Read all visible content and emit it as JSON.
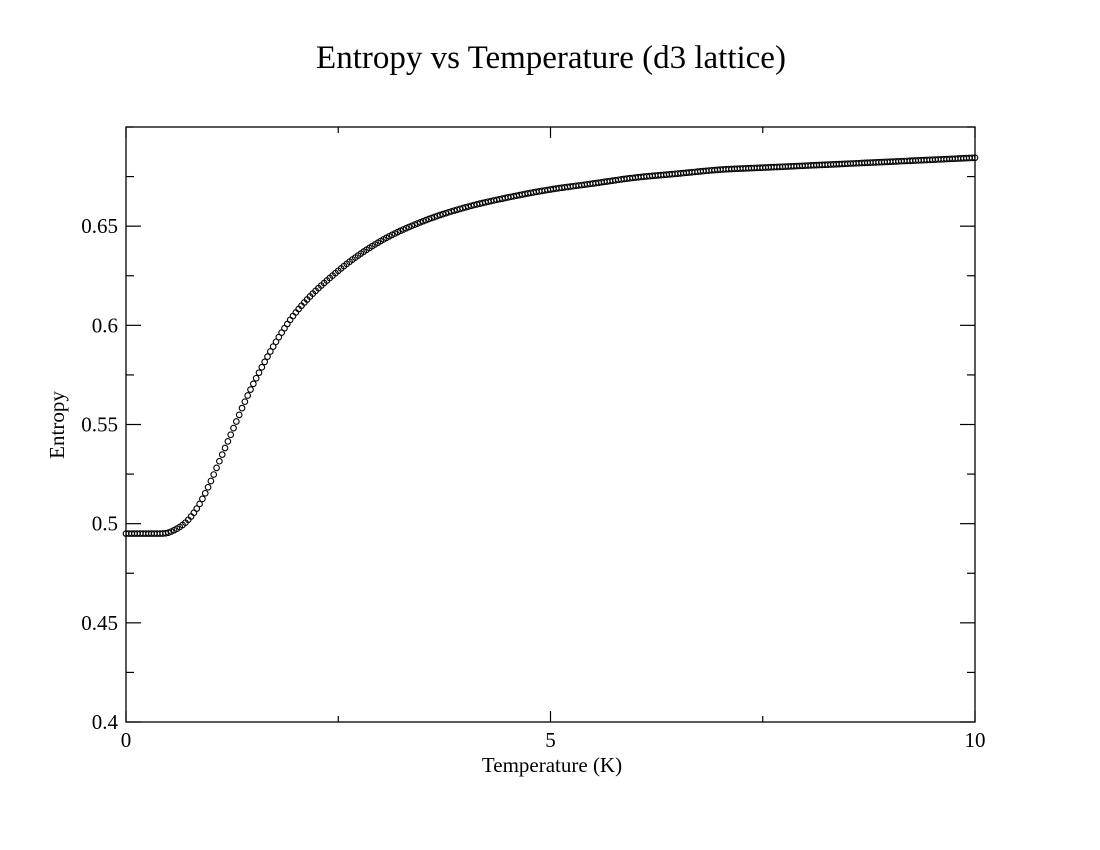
{
  "chart_data": {
    "type": "scatter",
    "title": "Entropy vs Temperature (d3 lattice)",
    "xlabel": "Temperature (K)",
    "ylabel": "Entropy",
    "xlim": [
      0,
      10
    ],
    "ylim": [
      0.4,
      0.7
    ],
    "xticks": [
      0,
      5,
      10
    ],
    "xtick_labels": [
      "0",
      "5",
      "10"
    ],
    "yticks": [
      0.4,
      0.45,
      0.5,
      0.55,
      0.6,
      0.65
    ],
    "ytick_labels": [
      "0.4",
      "0.45",
      "0.5",
      "0.55",
      "0.6",
      "0.65"
    ],
    "marker": "circle",
    "line_color": "#000000",
    "series": [
      {
        "name": "Entropy",
        "x": [
          0.0,
          0.4,
          0.5,
          0.6,
          0.7,
          0.8,
          0.9,
          1.0,
          1.1,
          1.2,
          1.3,
          1.4,
          1.5,
          1.75,
          2.0,
          2.5,
          3.0,
          3.5,
          4.0,
          4.5,
          5.0,
          5.5,
          6.0,
          6.5,
          7.0,
          7.5,
          8.0,
          8.5,
          9.0,
          9.5,
          10.0
        ],
        "y": [
          0.495,
          0.495,
          0.4955,
          0.4975,
          0.5005,
          0.5055,
          0.5125,
          0.5215,
          0.5315,
          0.5415,
          0.5515,
          0.5615,
          0.5705,
          0.5905,
          0.6065,
          0.6275,
          0.6425,
          0.6525,
          0.6595,
          0.6645,
          0.6685,
          0.6715,
          0.6745,
          0.6765,
          0.6785,
          0.6795,
          0.6805,
          0.6815,
          0.6825,
          0.6835,
          0.6845
        ]
      }
    ]
  }
}
